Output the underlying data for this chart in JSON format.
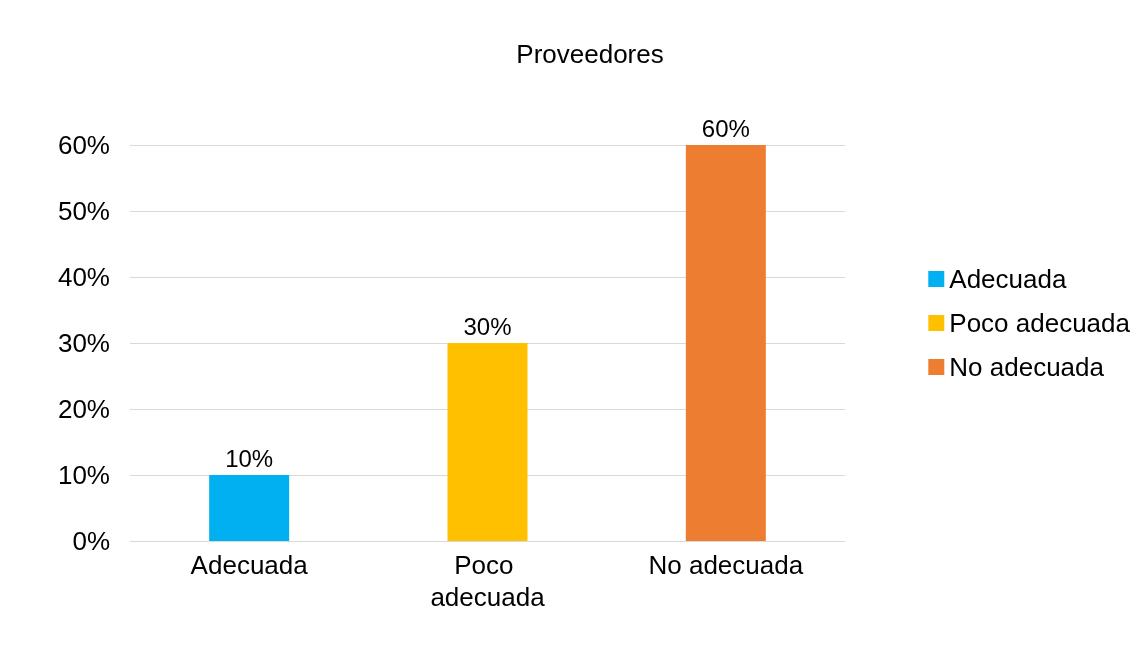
{
  "chart_data": {
    "type": "bar",
    "title": "Proveedores",
    "categories": [
      "Adecuada",
      "Poco adecuada",
      "No adecuada"
    ],
    "stacked": true,
    "series": [
      {
        "name": "Adecuada",
        "color": "#00b0f0",
        "values": [
          10,
          null,
          null
        ],
        "value_labels": [
          "10%",
          null,
          null
        ]
      },
      {
        "name": "Poco adecuada",
        "color": "#ffc000",
        "values": [
          null,
          30,
          null
        ],
        "value_labels": [
          null,
          "30%",
          null
        ]
      },
      {
        "name": "No adecuada",
        "color": "#ed7d31",
        "values": [
          null,
          null,
          60
        ],
        "value_labels": [
          null,
          null,
          "60%"
        ]
      }
    ],
    "ylim": [
      0,
      60
    ],
    "yticks": [
      {
        "value": 0,
        "label": "0%"
      },
      {
        "value": 10,
        "label": "10%"
      },
      {
        "value": 20,
        "label": "20%"
      },
      {
        "value": 30,
        "label": "30%"
      },
      {
        "value": 40,
        "label": "40%"
      },
      {
        "value": 50,
        "label": "50%"
      },
      {
        "value": 60,
        "label": "60%"
      }
    ],
    "grid": "y",
    "legend": "right"
  }
}
